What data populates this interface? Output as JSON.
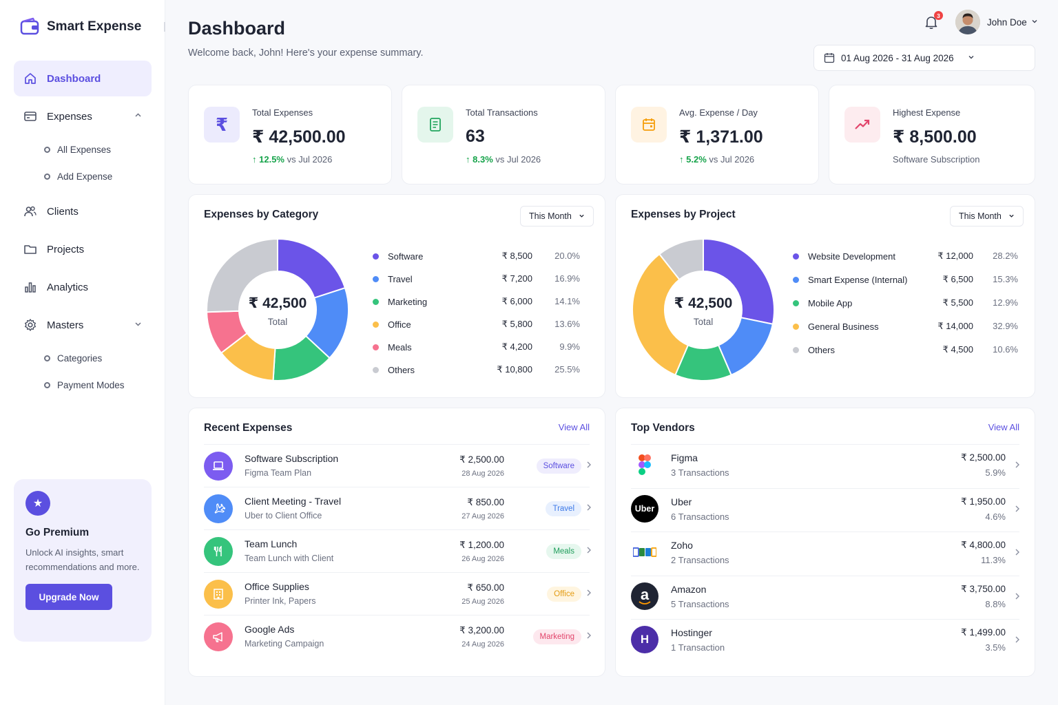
{
  "app": {
    "name": "Smart Expense"
  },
  "sidebar": {
    "items": [
      {
        "label": "Dashboard",
        "icon": "home-icon"
      },
      {
        "label": "Expenses",
        "icon": "card-icon"
      },
      {
        "label": "Clients",
        "icon": "users-icon"
      },
      {
        "label": "Projects",
        "icon": "folder-icon"
      },
      {
        "label": "Analytics",
        "icon": "bar-chart-icon"
      },
      {
        "label": "Masters",
        "icon": "gear-icon"
      }
    ],
    "expenses_sub": [
      "All Expenses",
      "Add Expense"
    ],
    "masters_sub": [
      "Categories",
      "Payment Modes"
    ],
    "premium": {
      "title": "Go Premium",
      "text": "Unlock AI insights, smart recommendations and more.",
      "button": "Upgrade Now"
    }
  },
  "header": {
    "title": "Dashboard",
    "subtitle": "Welcome back, John! Here's your expense summary.",
    "notifications": "3",
    "user": "John Doe",
    "date_range": "01 Aug 2026 - 31 Aug 2026"
  },
  "stats": [
    {
      "label": "Total Expenses",
      "value": "₹ 42,500.00",
      "change": "12.5%",
      "compare": "vs Jul 2026"
    },
    {
      "label": "Total Transactions",
      "value": "63",
      "change": "8.3%",
      "compare": "vs Jul 2026"
    },
    {
      "label": "Avg. Expense / Day",
      "value": "₹ 1,371.00",
      "change": "5.2%",
      "compare": "vs Jul 2026"
    },
    {
      "label": "Highest Expense",
      "value": "₹ 8,500.00",
      "note": "Software Subscription"
    }
  ],
  "category_panel": {
    "title": "Expenses by Category",
    "period": "This Month",
    "center_value": "₹ 42,500",
    "center_label": "Total",
    "rows": [
      {
        "name": "Software",
        "amount": "₹ 8,500",
        "pct": "20.0%",
        "value": 20.0,
        "color": "#6b54e8"
      },
      {
        "name": "Travel",
        "amount": "₹ 7,200",
        "pct": "16.9%",
        "value": 16.9,
        "color": "#4f8cf7"
      },
      {
        "name": "Marketing",
        "amount": "₹ 6,000",
        "pct": "14.1%",
        "value": 14.1,
        "color": "#35c47c"
      },
      {
        "name": "Office",
        "amount": "₹ 5,800",
        "pct": "13.6%",
        "value": 13.6,
        "color": "#fbbf4a"
      },
      {
        "name": "Meals",
        "amount": "₹ 4,200",
        "pct": "9.9%",
        "value": 9.9,
        "color": "#f6728f"
      },
      {
        "name": "Others",
        "amount": "₹ 10,800",
        "pct": "25.5%",
        "value": 25.5,
        "color": "#c9cbd1"
      }
    ]
  },
  "project_panel": {
    "title": "Expenses by Project",
    "period": "This Month",
    "center_value": "₹ 42,500",
    "center_label": "Total",
    "rows": [
      {
        "name": "Website Development",
        "amount": "₹ 12,000",
        "pct": "28.2%",
        "value": 28.2,
        "color": "#6b54e8"
      },
      {
        "name": "Smart Expense (Internal)",
        "amount": "₹ 6,500",
        "pct": "15.3%",
        "value": 15.3,
        "color": "#4f8cf7"
      },
      {
        "name": "Mobile App",
        "amount": "₹ 5,500",
        "pct": "12.9%",
        "value": 12.9,
        "color": "#35c47c"
      },
      {
        "name": "General Business",
        "amount": "₹ 14,000",
        "pct": "32.9%",
        "value": 32.9,
        "color": "#fbbf4a"
      },
      {
        "name": "Others",
        "amount": "₹ 4,500",
        "pct": "10.6%",
        "value": 10.6,
        "color": "#c9cbd1"
      }
    ]
  },
  "recent": {
    "title": "Recent Expenses",
    "view_all": "View All",
    "rows": [
      {
        "title": "Software Subscription",
        "sub": "Figma Team Plan",
        "amount": "₹ 2,500.00",
        "date": "28 Aug 2026",
        "tag": "Software",
        "icon": "laptop-icon",
        "color": "#7c5cf0",
        "tag_bg": "#efedfd",
        "tag_fg": "#5b4fe0"
      },
      {
        "title": "Client Meeting - Travel",
        "sub": "Uber to Client Office",
        "amount": "₹ 850.00",
        "date": "27 Aug 2026",
        "tag": "Travel",
        "icon": "plane-icon",
        "color": "#4f8cf7",
        "tag_bg": "#e8f0fe",
        "tag_fg": "#3b78e7"
      },
      {
        "title": "Team Lunch",
        "sub": "Team Lunch with Client",
        "amount": "₹ 1,200.00",
        "date": "26 Aug 2026",
        "tag": "Meals",
        "icon": "fork-knife-icon",
        "color": "#35c47c",
        "tag_bg": "#e6f7ee",
        "tag_fg": "#1f9d5b"
      },
      {
        "title": "Office Supplies",
        "sub": "Printer Ink, Papers",
        "amount": "₹ 650.00",
        "date": "25 Aug 2026",
        "tag": "Office",
        "icon": "building-icon",
        "color": "#fbbf4a",
        "tag_bg": "#fff5e0",
        "tag_fg": "#e39b12"
      },
      {
        "title": "Google Ads",
        "sub": "Marketing Campaign",
        "amount": "₹ 3,200.00",
        "date": "24 Aug 2026",
        "tag": "Marketing",
        "icon": "megaphone-icon",
        "color": "#f6728f",
        "tag_bg": "#fde8ee",
        "tag_fg": "#e2456b"
      }
    ]
  },
  "vendors": {
    "title": "Top Vendors",
    "view_all": "View All",
    "rows": [
      {
        "name": "Figma",
        "sub": "3 Transactions",
        "amount": "₹ 2,500.00",
        "pct": "5.9%",
        "icon": "figma-logo"
      },
      {
        "name": "Uber",
        "sub": "6 Transactions",
        "amount": "₹ 1,950.00",
        "pct": "4.6%",
        "icon": "uber-logo",
        "logo_text": "Uber"
      },
      {
        "name": "Zoho",
        "sub": "2 Transactions",
        "amount": "₹ 4,800.00",
        "pct": "11.3%",
        "icon": "zoho-logo"
      },
      {
        "name": "Amazon",
        "sub": "5 Transactions",
        "amount": "₹ 3,750.00",
        "pct": "8.8%",
        "icon": "amazon-logo",
        "logo_text": "a"
      },
      {
        "name": "Hostinger",
        "sub": "1 Transaction",
        "amount": "₹ 1,499.00",
        "pct": "3.5%",
        "icon": "hostinger-logo",
        "logo_text": "H"
      }
    ]
  }
}
